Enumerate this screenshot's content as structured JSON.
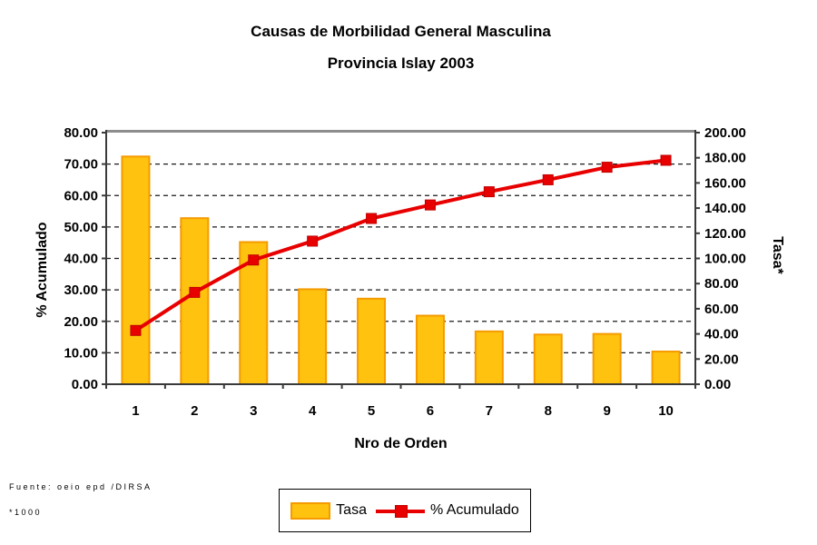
{
  "title": {
    "line1": "Causas de Morbilidad General Masculina",
    "line2": "Provincia Islay 2003"
  },
  "chart_data": {
    "type": "bar",
    "subtype": "pareto-combo-bar-line",
    "title": "Causas de Morbilidad General Masculina",
    "subtitle": "Provincia Islay 2003",
    "xlabel": "Nro de Orden",
    "ylabel_left": "% Acumulado",
    "ylabel_right": "Tasa*",
    "categories": [
      "1",
      "2",
      "3",
      "4",
      "5",
      "6",
      "7",
      "8",
      "9",
      "10"
    ],
    "series": [
      {
        "name": "Tasa",
        "type": "bar",
        "axis": "right",
        "values": [
          181,
          132,
          113,
          75.5,
          68,
          54.5,
          42,
          39.5,
          40,
          26
        ]
      },
      {
        "name": "% Acumulado",
        "type": "line",
        "axis": "left",
        "values": [
          17.1,
          29.2,
          39.5,
          45.5,
          52.7,
          57.0,
          61.2,
          65.0,
          69.0,
          71.2
        ]
      }
    ],
    "left_axis": {
      "min": 0,
      "max": 80,
      "step": 10,
      "tick_labels": [
        "0.00",
        "10.00",
        "20.00",
        "30.00",
        "40.00",
        "50.00",
        "60.00",
        "70.00",
        "80.00"
      ]
    },
    "right_axis": {
      "min": 0,
      "max": 200,
      "step": 20,
      "tick_labels": [
        "0.00",
        "20.00",
        "40.00",
        "60.00",
        "80.00",
        "100.00",
        "120.00",
        "140.00",
        "160.00",
        "180.00",
        "200.00"
      ]
    },
    "grid": "horizontal-dashed",
    "legend_position": "bottom-center"
  },
  "legend": {
    "items": [
      {
        "label": "Tasa",
        "swatch": "bar"
      },
      {
        "label": "% Acumulado",
        "swatch": "line-marker"
      }
    ]
  },
  "footer": {
    "source": "Fuente: oeio epd /DIRSA",
    "note": "*1000"
  },
  "colors": {
    "bar_fill": "#FFC20E",
    "bar_border": "#F59B00",
    "line": "#E80000",
    "marker_border": "#C00000",
    "grid": "#1a1a1a",
    "axis": "#3a3a3a",
    "plot_top_border": "#8C8C8C",
    "text": "#000000",
    "background": "#FFFFFF"
  }
}
